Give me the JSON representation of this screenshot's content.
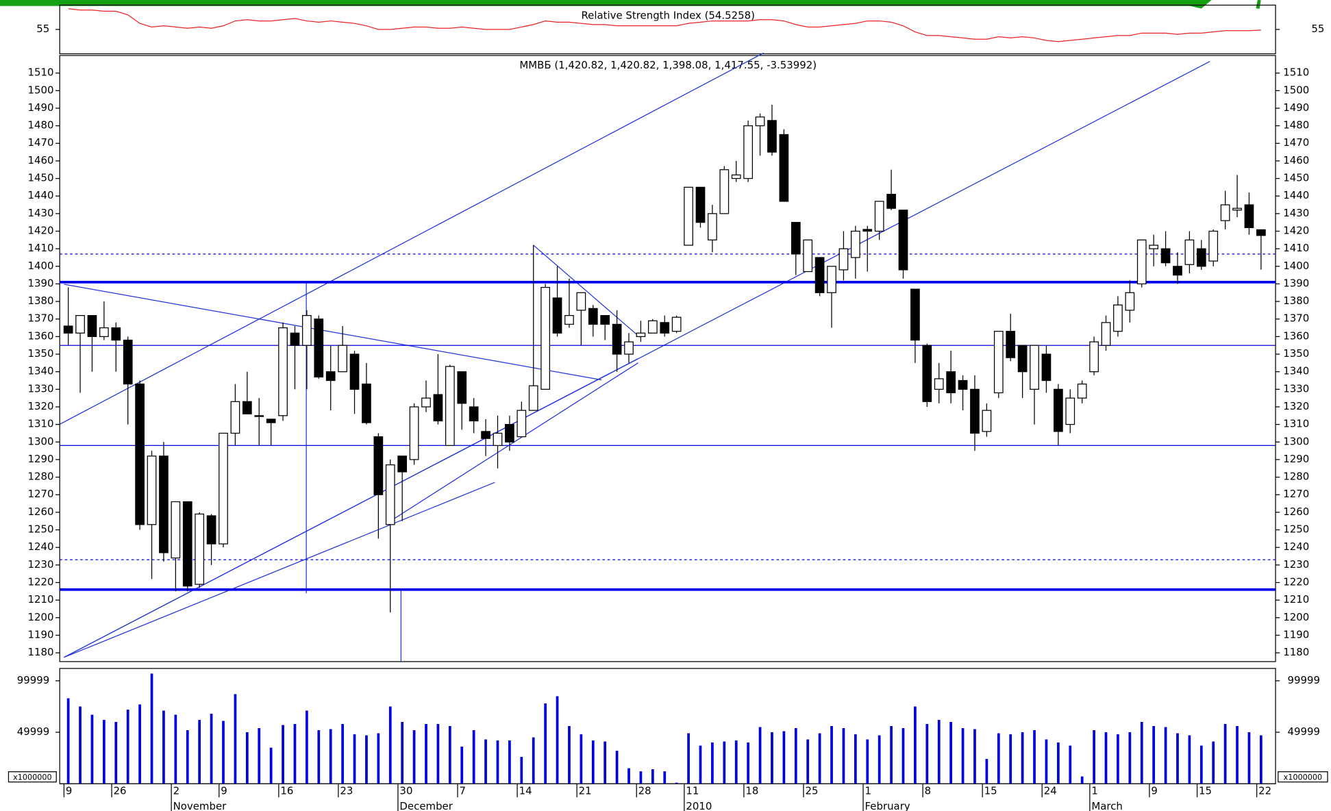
{
  "chart_data": {
    "type": "candlestick",
    "title": "ММВБ (1,420.82, 1,420.82, 1,398.08, 1,417.55, -3.53992)",
    "categories": [
      "9",
      null,
      null,
      null,
      "26",
      null,
      null,
      null,
      null,
      "2",
      null,
      null,
      null,
      "9",
      null,
      null,
      null,
      null,
      "16",
      null,
      null,
      null,
      null,
      "23",
      null,
      null,
      null,
      null,
      "30",
      null,
      null,
      null,
      null,
      "7",
      null,
      null,
      null,
      null,
      "14",
      null,
      null,
      null,
      null,
      "21",
      null,
      null,
      null,
      null,
      "28",
      null,
      null,
      null,
      "11",
      null,
      null,
      null,
      null,
      "18",
      null,
      null,
      null,
      null,
      "25",
      null,
      null,
      null,
      null,
      "1",
      null,
      null,
      null,
      null,
      "8",
      null,
      null,
      null,
      null,
      "15",
      null,
      null,
      null,
      null,
      "24",
      null,
      null,
      null,
      "1",
      null,
      null,
      null,
      null,
      "9",
      null,
      null,
      null,
      "15",
      null,
      null,
      null,
      null,
      "22"
    ],
    "months": [
      null,
      null,
      null,
      null,
      null,
      null,
      null,
      null,
      null,
      "November",
      null,
      null,
      null,
      null,
      null,
      null,
      null,
      null,
      null,
      null,
      null,
      null,
      null,
      null,
      null,
      null,
      null,
      null,
      "December",
      null,
      null,
      null,
      null,
      null,
      null,
      null,
      null,
      null,
      null,
      null,
      null,
      null,
      null,
      null,
      null,
      null,
      null,
      null,
      null,
      null,
      null,
      null,
      "2010",
      null,
      null,
      null,
      null,
      null,
      null,
      null,
      null,
      null,
      null,
      null,
      null,
      null,
      null,
      "February",
      null,
      null,
      null,
      null,
      null,
      null,
      null,
      null,
      null,
      null,
      null,
      null,
      null,
      null,
      null,
      null,
      null,
      null,
      "March",
      null,
      null,
      null,
      null,
      null,
      null,
      null,
      null,
      null,
      null,
      null,
      null,
      null,
      null
    ],
    "open": [
      1366,
      1362,
      1372,
      1360,
      1365,
      1358,
      1333,
      1253,
      1292,
      1234,
      1266,
      1219,
      1258,
      1242,
      1305,
      1323,
      1315,
      1313,
      1315,
      1362,
      1355,
      1370,
      1340,
      1340,
      1350,
      1333,
      1303,
      1253,
      1292,
      1290,
      1320,
      1327,
      1298,
      1340,
      1320,
      1306,
      1298,
      1310,
      1303,
      1318,
      1330,
      1382,
      1367,
      1375,
      1376,
      1372,
      1367,
      1350,
      1360,
      1362,
      1368,
      1363,
      1412,
      1445,
      1415,
      1430,
      1450,
      1450,
      1480,
      1483,
      1475,
      1425,
      1397,
      1405,
      1385,
      1398,
      1405,
      1421,
      1420,
      1441,
      1432,
      1387,
      1355,
      1330,
      1340,
      1335,
      1330,
      1306,
      1328,
      1363,
      1355,
      1330,
      1350,
      1330,
      1310,
      1325,
      1340,
      1355,
      1363,
      1375,
      1390,
      1410,
      1410,
      1400,
      1401,
      1410,
      1403,
      1426,
      1432,
      1435,
      1420.82
    ],
    "high": [
      1388,
      1372,
      1372,
      1380,
      1368,
      1360,
      1335,
      1295,
      1300,
      1266,
      1266,
      1260,
      1259,
      1305,
      1333,
      1340,
      1325,
      1313,
      1368,
      1366,
      1375,
      1372,
      1355,
      1366,
      1352,
      1345,
      1305,
      1290,
      1292,
      1322,
      1335,
      1350,
      1344,
      1338,
      1325,
      1313,
      1315,
      1315,
      1323,
      1412,
      1390,
      1400,
      1393,
      1383,
      1378,
      1372,
      1375,
      1362,
      1369,
      1370,
      1372,
      1372,
      1445,
      1445,
      1435,
      1457,
      1460,
      1483,
      1487,
      1492,
      1478,
      1425,
      1415,
      1405,
      1400,
      1420,
      1423,
      1423,
      1437,
      1455,
      1432,
      1387,
      1356,
      1345,
      1352,
      1338,
      1338,
      1322,
      1363,
      1373,
      1355,
      1355,
      1355,
      1333,
      1330,
      1335,
      1360,
      1372,
      1383,
      1392,
      1415,
      1418,
      1420,
      1408,
      1420,
      1415,
      1421,
      1443,
      1452,
      1442,
      1420.82
    ],
    "low": [
      1355,
      1328,
      1340,
      1358,
      1340,
      1310,
      1250,
      1222,
      1232,
      1215,
      1215,
      1217,
      1230,
      1240,
      1298,
      1316,
      1298,
      1298,
      1312,
      1330,
      1330,
      1336,
      1318,
      1340,
      1316,
      1310,
      1245,
      1203,
      1255,
      1287,
      1317,
      1310,
      1298,
      1307,
      1305,
      1292,
      1285,
      1295,
      1303,
      1318,
      1330,
      1360,
      1365,
      1355,
      1360,
      1358,
      1340,
      1345,
      1357,
      1362,
      1360,
      1362,
      1412,
      1422,
      1408,
      1430,
      1448,
      1448,
      1463,
      1463,
      1437,
      1395,
      1398,
      1383,
      1365,
      1392,
      1393,
      1397,
      1415,
      1432,
      1393,
      1345,
      1320,
      1322,
      1322,
      1318,
      1295,
      1303,
      1325,
      1346,
      1325,
      1310,
      1328,
      1298,
      1305,
      1322,
      1338,
      1352,
      1360,
      1368,
      1388,
      1400,
      1400,
      1390,
      1396,
      1398,
      1400,
      1421,
      1428,
      1418,
      1398.08
    ],
    "close": [
      1362,
      1372,
      1360,
      1365,
      1358,
      1333,
      1253,
      1292,
      1237,
      1266,
      1218,
      1259,
      1242,
      1305,
      1323,
      1316,
      1315,
      1311,
      1365,
      1355,
      1372,
      1337,
      1335,
      1355,
      1330,
      1311,
      1270,
      1287,
      1283,
      1320,
      1325,
      1312,
      1343,
      1322,
      1312,
      1302,
      1305,
      1300,
      1318,
      1332,
      1388,
      1362,
      1372,
      1385,
      1367,
      1367,
      1350,
      1357,
      1362,
      1369,
      1362,
      1371,
      1445,
      1425,
      1430,
      1455,
      1452,
      1480,
      1485,
      1465,
      1437,
      1407,
      1415,
      1385,
      1400,
      1410,
      1420,
      1420,
      1437,
      1433,
      1398,
      1358,
      1323,
      1336,
      1328,
      1330,
      1305,
      1318,
      1363,
      1348,
      1340,
      1355,
      1335,
      1306,
      1325,
      1333,
      1357,
      1368,
      1378,
      1385,
      1415,
      1412,
      1402,
      1395,
      1415,
      1400,
      1420,
      1435,
      1433,
      1422,
      1417.55
    ],
    "ylim": [
      1175,
      1520
    ],
    "yticks": [
      1180,
      1190,
      1200,
      1210,
      1220,
      1230,
      1240,
      1250,
      1260,
      1270,
      1280,
      1290,
      1300,
      1310,
      1320,
      1330,
      1340,
      1350,
      1360,
      1370,
      1380,
      1390,
      1400,
      1410,
      1420,
      1430,
      1440,
      1450,
      1460,
      1470,
      1480,
      1490,
      1500,
      1510
    ],
    "levels": [
      {
        "value": 1391,
        "style": "thick"
      },
      {
        "value": 1216,
        "style": "thick"
      },
      {
        "value": 1355,
        "style": "thin"
      },
      {
        "value": 1298,
        "style": "thin"
      },
      {
        "value": 1407,
        "style": "dashed"
      },
      {
        "value": 1233,
        "style": "dashed"
      }
    ],
    "level_color": "#0000ee",
    "rsi": {
      "title": "Relative Strength Index (54.5258)",
      "color": "#ee2222",
      "ylim": [
        35,
        75
      ],
      "yticks": [
        55
      ],
      "values": [
        72,
        71,
        71,
        70,
        70,
        67,
        60,
        57,
        58,
        57,
        56,
        57,
        56,
        58,
        62,
        63,
        62,
        62,
        63,
        64,
        62,
        61,
        62,
        61,
        60,
        58,
        55,
        55,
        56,
        57,
        57,
        56,
        56,
        57,
        56,
        55,
        55,
        55,
        57,
        59,
        62,
        61,
        61,
        60,
        59,
        59,
        58,
        58,
        58,
        58,
        58,
        58,
        60,
        61,
        62,
        62,
        62,
        62,
        63,
        63,
        62,
        59,
        57,
        57,
        58,
        59,
        60,
        62,
        62,
        61,
        58,
        53,
        50,
        50,
        49,
        48,
        47,
        47,
        49,
        48,
        49,
        48,
        46,
        45,
        46,
        47,
        48,
        49,
        50,
        50,
        52,
        52,
        52,
        51,
        52,
        52,
        53,
        54,
        54,
        54,
        54.5258
      ]
    },
    "volume": {
      "color": "#0000dd",
      "unit_label": "x1000000",
      "ylim": [
        0,
        112000
      ],
      "yticks": [
        49999,
        99999
      ],
      "values": [
        83000,
        75000,
        67000,
        62000,
        60000,
        72000,
        77000,
        107000,
        71000,
        67000,
        52000,
        62000,
        68000,
        61000,
        87000,
        50000,
        54000,
        35000,
        57000,
        58000,
        71000,
        52000,
        53000,
        58000,
        48000,
        47000,
        49000,
        75000,
        60000,
        52000,
        58000,
        58000,
        56000,
        36000,
        52000,
        43000,
        42000,
        42000,
        26000,
        45000,
        78000,
        85000,
        56000,
        48000,
        42000,
        41000,
        32000,
        15000,
        12000,
        14000,
        12000,
        1000,
        49000,
        37000,
        40000,
        41000,
        42000,
        40000,
        55000,
        50000,
        51000,
        54000,
        43000,
        49000,
        56000,
        54000,
        48000,
        43000,
        47000,
        56000,
        54000,
        75000,
        58000,
        62000,
        60000,
        54000,
        53000,
        24000,
        49000,
        48000,
        50000,
        52000,
        43000,
        40000,
        37000,
        7000,
        52000,
        50000,
        48000,
        50000,
        60000,
        56000,
        55000,
        49000,
        47000,
        37000,
        41000,
        58000,
        56000,
        50000,
        47000
      ]
    }
  }
}
